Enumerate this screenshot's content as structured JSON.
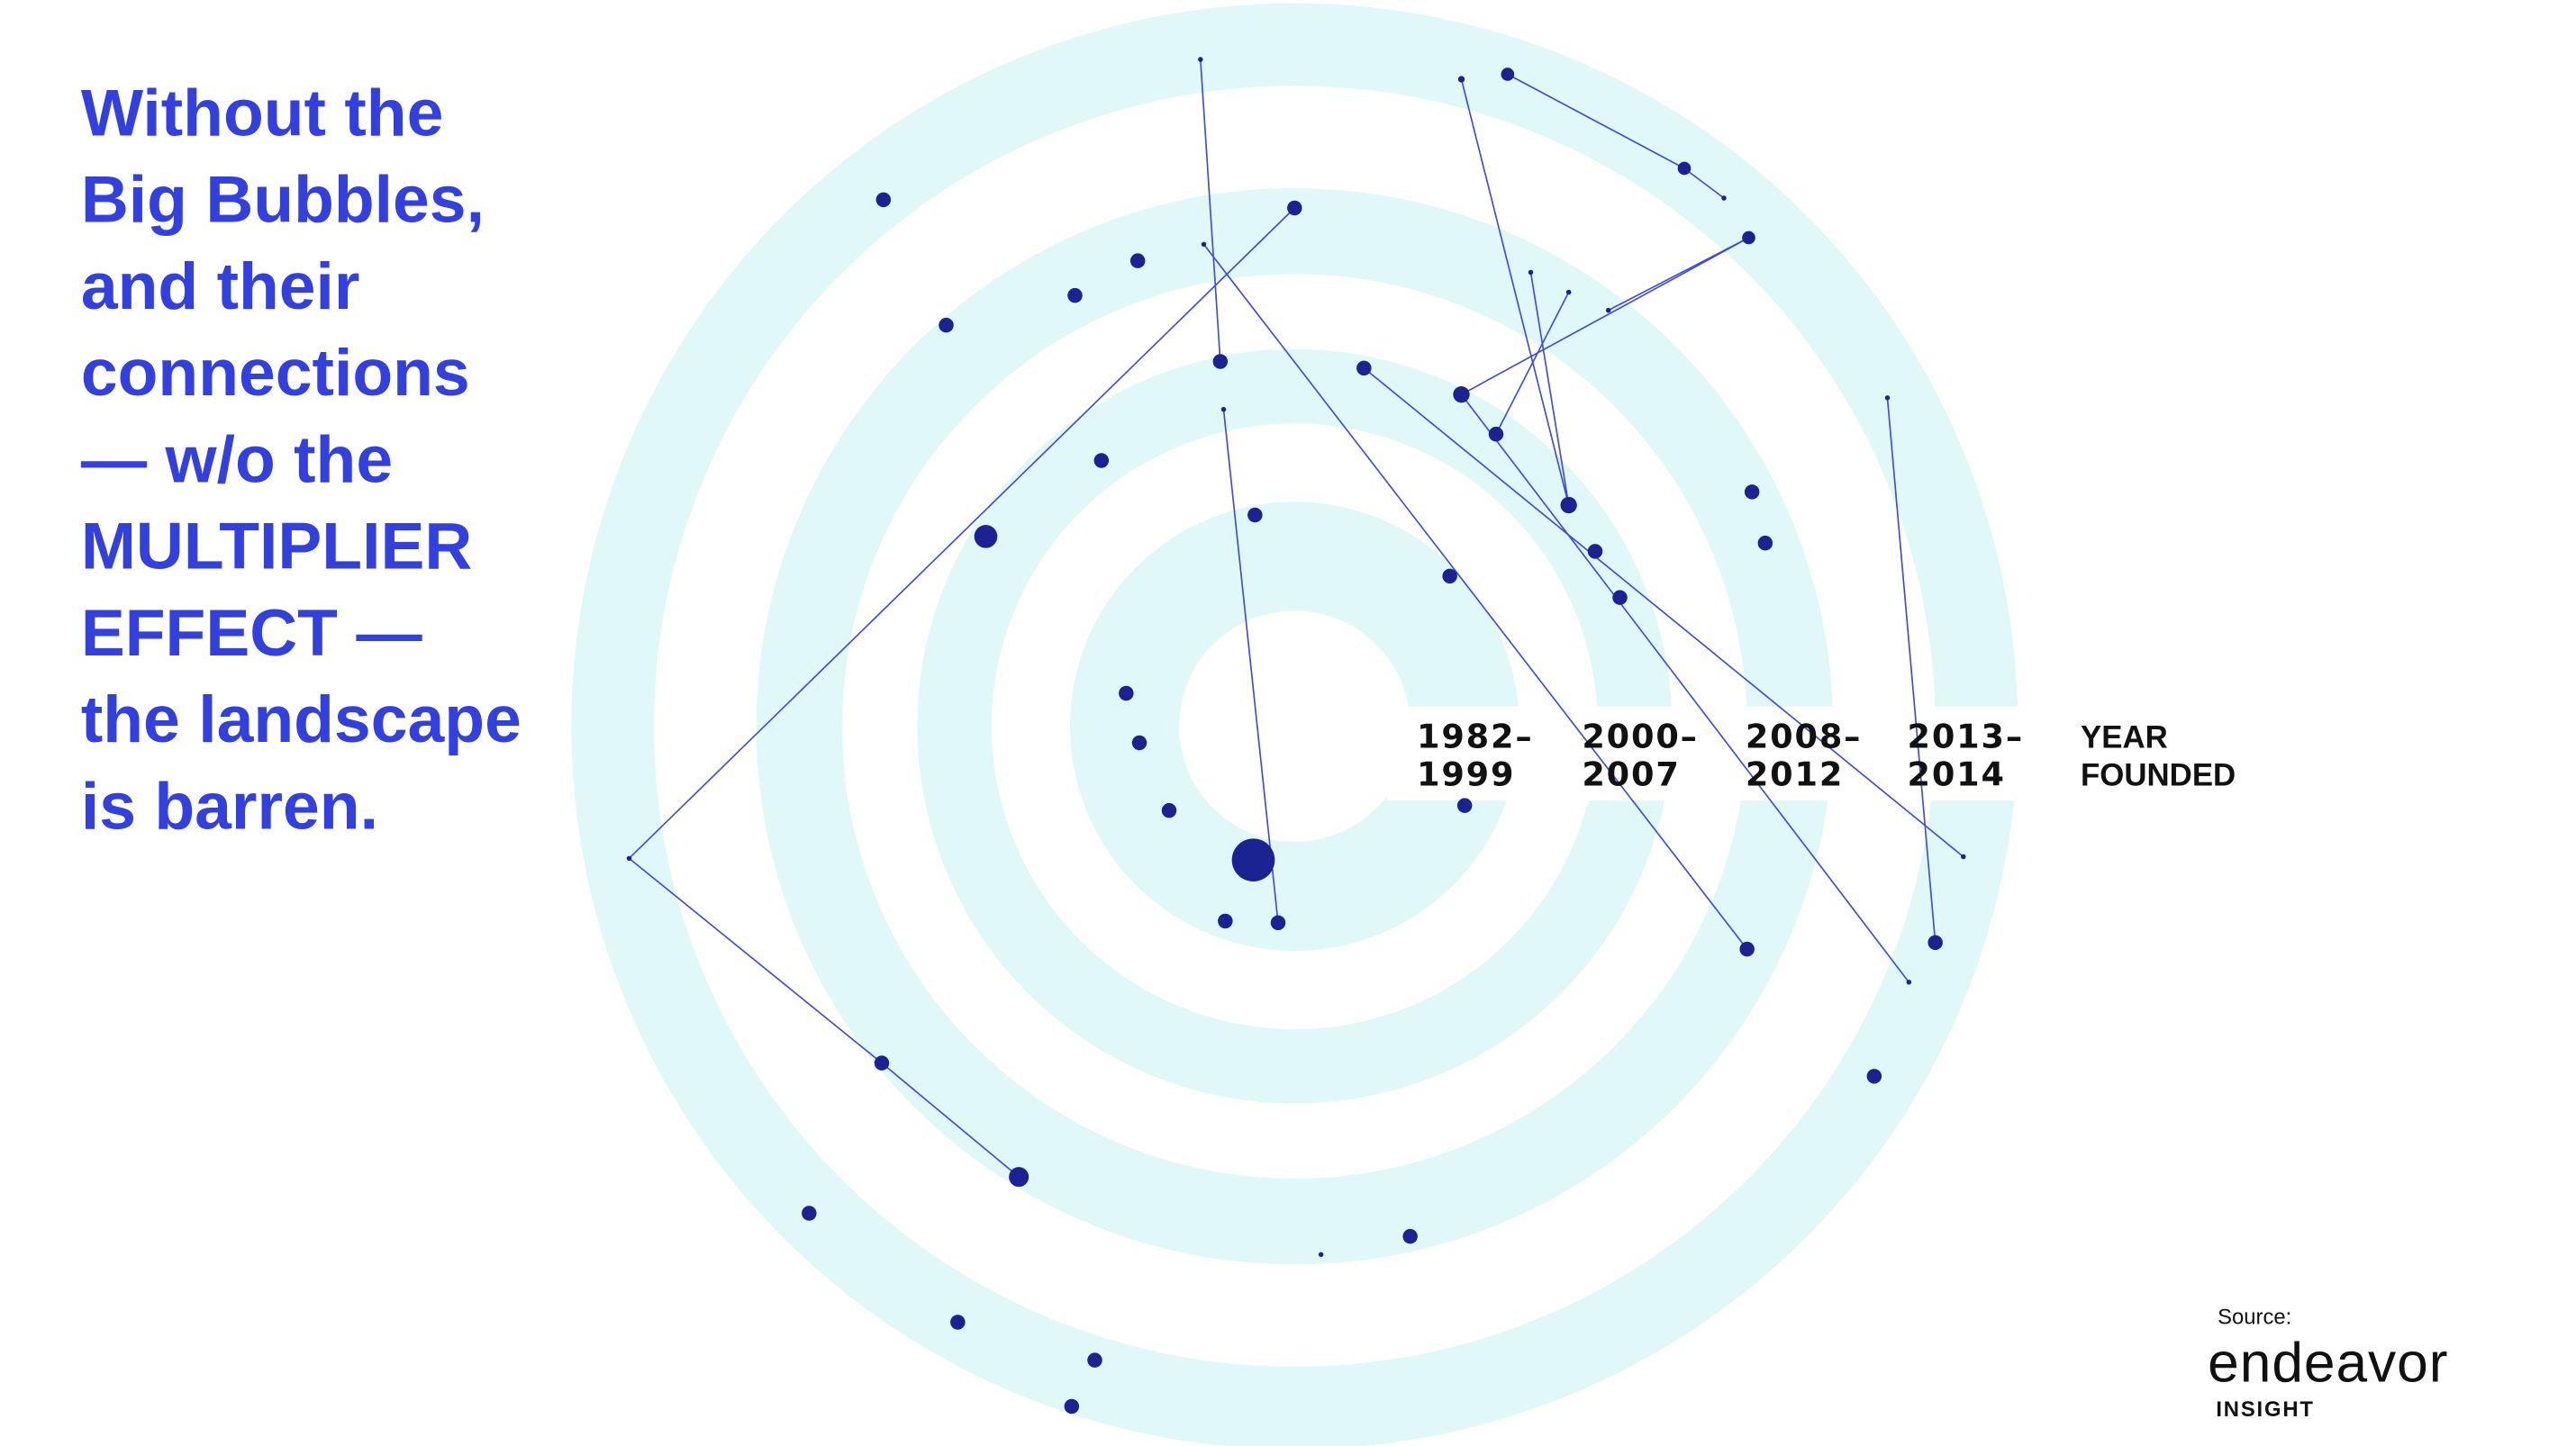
{
  "heading": {
    "lines": [
      "Without  the",
      "Big Bubbles,",
      "and their",
      "connections",
      "— w/o the",
      "MULTIPLIER",
      "EFFECT —",
      "the landscape",
      "is barren."
    ]
  },
  "rings": [
    {
      "line1": "1982–",
      "line2": "1999"
    },
    {
      "line1": "2000–",
      "line2": "2007"
    },
    {
      "line1": "2008–",
      "line2": "2012"
    },
    {
      "line1": "2013–",
      "line2": "2014"
    }
  ],
  "legend_label": {
    "line1": "YEAR",
    "line2": "FOUNDED"
  },
  "source": {
    "label": "Source:",
    "brand": "endeavor",
    "sub": "INSIGHT"
  }
}
